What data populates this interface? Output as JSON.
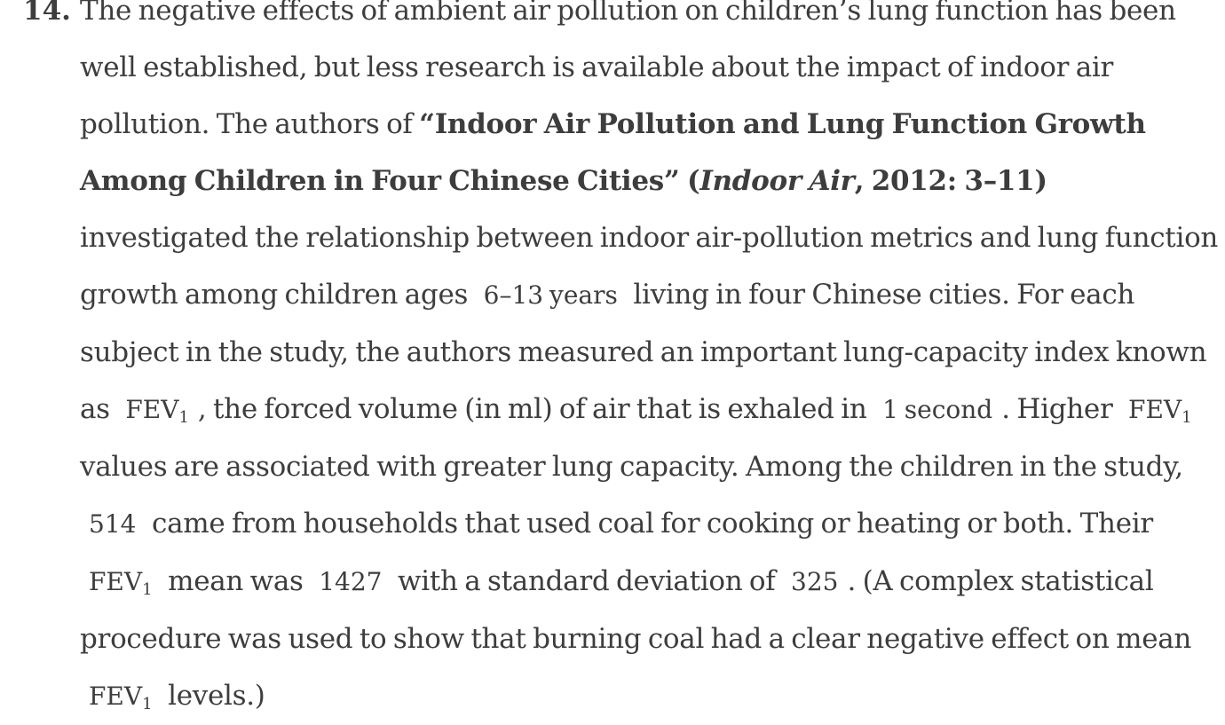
{
  "problem": {
    "number": "14.",
    "text_1": "The negative effects of ambient air pollution on children’s lung function has been well established, but less research is available about the impact of indoor air pollution. The authors of ",
    "citation_title": "“Indoor Air Pollution and Lung Function Growth Among Children in Four Chinese Cities” (",
    "journal": "Indoor Air",
    "citation_tail": ", 2012: 3–11)",
    "text_2": " investigated the relationship between indoor air-pollution metrics and lung function growth among children ages ",
    "age_range": "6–13",
    "unit_years": " years",
    "text_3": " living in four Chinese cities. For each subject in the study, the authors measured an important lung-capacity index known as ",
    "fev_base": "FEV",
    "fev_sub": "1",
    "text_4": ", the forced volume (in ml) of air that is exhaled in ",
    "seconds": "1",
    "unit_second": " second",
    "text_5": ". Higher ",
    "text_6": " values are associated with greater lung capacity. Among the children in the study, ",
    "n_coal": "514",
    "text_7": " came from households that used coal for cooking or heating or both. Their ",
    "text_8": " mean was ",
    "mean": "1427",
    "text_9": " with a standard deviation of ",
    "sd": "325",
    "text_10": ". (A complex statistical procedure was used to show that burning coal had a clear negative effect on mean ",
    "text_11": " levels.)"
  }
}
